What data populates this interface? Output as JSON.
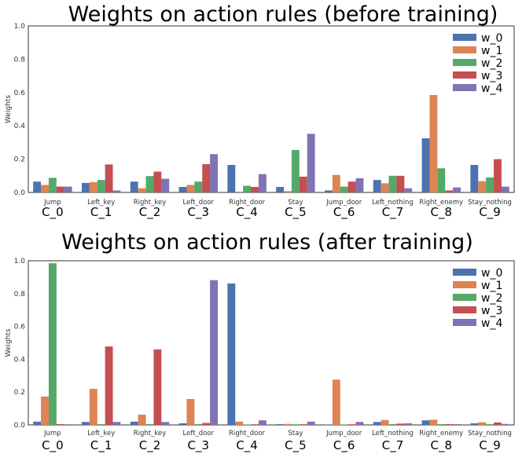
{
  "colors": {
    "w_0": "#4c72b0",
    "w_1": "#dd8452",
    "w_2": "#55a868",
    "w_3": "#c44e52",
    "w_4": "#8172b3"
  },
  "chart_data": [
    {
      "type": "bar",
      "title": "Weights on action rules (before training)",
      "ylabel": "Weights",
      "ylim": [
        0,
        1.0
      ],
      "yticks": [
        "0.0",
        "0.2",
        "0.4",
        "0.6",
        "0.8",
        "1.0"
      ],
      "categories": [
        "Jump",
        "Left_key",
        "Right_key",
        "Left_door",
        "Right_door",
        "Stay",
        "Jump_door",
        "Left_nothing",
        "Right_enemy",
        "Stay_nothing"
      ],
      "category_ids": [
        "C_0",
        "C_1",
        "C_2",
        "C_3",
        "C_4",
        "C_5",
        "C_6",
        "C_7",
        "C_8",
        "C_9"
      ],
      "legend_position": "top-right",
      "grid": false,
      "series": [
        {
          "name": "w_0",
          "values": [
            0.065,
            0.057,
            0.065,
            0.033,
            0.165,
            0.033,
            0.012,
            0.075,
            0.325,
            0.165
          ]
        },
        {
          "name": "w_1",
          "values": [
            0.045,
            0.062,
            0.025,
            0.045,
            0.0,
            0.008,
            0.105,
            0.055,
            0.585,
            0.068
          ]
        },
        {
          "name": "w_2",
          "values": [
            0.088,
            0.075,
            0.098,
            0.065,
            0.04,
            0.255,
            0.035,
            0.1,
            0.145,
            0.09
          ]
        },
        {
          "name": "w_3",
          "values": [
            0.035,
            0.168,
            0.125,
            0.17,
            0.033,
            0.095,
            0.065,
            0.1,
            0.012,
            0.2
          ]
        },
        {
          "name": "w_4",
          "values": [
            0.035,
            0.012,
            0.082,
            0.23,
            0.11,
            0.352,
            0.085,
            0.025,
            0.03,
            0.035
          ]
        }
      ]
    },
    {
      "type": "bar",
      "title": "Weights on action rules (after training)",
      "ylabel": "Weights",
      "ylim": [
        0,
        1.0
      ],
      "yticks": [
        "0.0",
        "0.2",
        "0.4",
        "0.6",
        "0.8",
        "1.0"
      ],
      "categories": [
        "Jump",
        "Left_key",
        "Right_key",
        "Left_door",
        "Right_door",
        "Stay",
        "Jump_door",
        "Left_nothing",
        "Right_enemy",
        "Stay_nothing"
      ],
      "category_ids": [
        "C_0",
        "C_1",
        "C_2",
        "C_3",
        "C_4",
        "C_5",
        "C_6",
        "C_7",
        "C_8",
        "C_9"
      ],
      "legend_position": "top-right",
      "grid": false,
      "series": [
        {
          "name": "w_0",
          "values": [
            0.02,
            0.018,
            0.02,
            0.01,
            0.862,
            0.005,
            0.003,
            0.018,
            0.028,
            0.01
          ]
        },
        {
          "name": "w_1",
          "values": [
            0.173,
            0.22,
            0.063,
            0.158,
            0.02,
            0.006,
            0.276,
            0.03,
            0.032,
            0.016
          ]
        },
        {
          "name": "w_2",
          "values": [
            0.985,
            0.005,
            0.005,
            0.005,
            0.003,
            0.004,
            0.003,
            0.005,
            0.005,
            0.005
          ]
        },
        {
          "name": "w_3",
          "values": [
            0.005,
            0.478,
            0.46,
            0.012,
            0.004,
            0.004,
            0.004,
            0.008,
            0.005,
            0.015
          ]
        },
        {
          "name": "w_4",
          "values": [
            0.004,
            0.018,
            0.018,
            0.882,
            0.028,
            0.02,
            0.018,
            0.01,
            0.005,
            0.006
          ]
        }
      ]
    }
  ]
}
